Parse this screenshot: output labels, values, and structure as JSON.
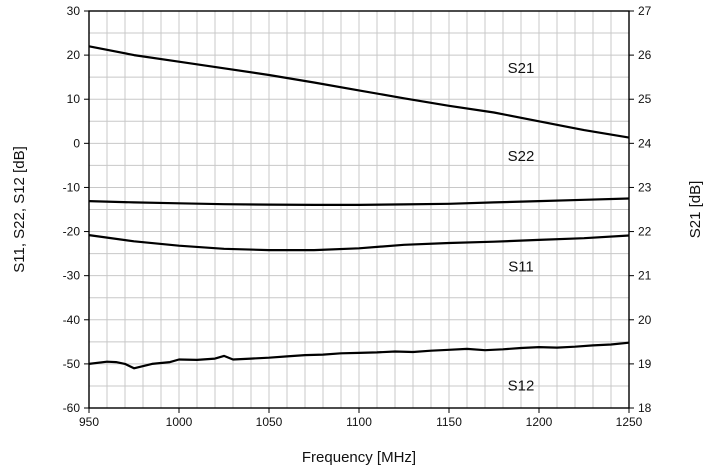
{
  "chart_data": {
    "type": "line",
    "xlabel": "Frequency [MHz]",
    "ylabel": "S11, S22, S12 [dB]",
    "y2label": "S21 [dB]",
    "xlim": [
      950,
      1250
    ],
    "ylim": [
      -60,
      30
    ],
    "y2lim": [
      18,
      27
    ],
    "xticks": [
      950,
      1000,
      1050,
      1100,
      1150,
      1200,
      1250
    ],
    "yticks": [
      -60,
      -50,
      -40,
      -30,
      -20,
      -10,
      0,
      10,
      20,
      30
    ],
    "y2ticks": [
      18,
      19,
      20,
      21,
      22,
      23,
      24,
      25,
      26,
      27
    ],
    "grid": true,
    "series": [
      {
        "name": "S21",
        "axis": "right",
        "label_at": [
          1190,
          25.6
        ],
        "x": [
          950,
          975,
          1000,
          1025,
          1050,
          1075,
          1100,
          1125,
          1150,
          1175,
          1200,
          1225,
          1250
        ],
        "values": [
          26.2,
          26.0,
          25.85,
          25.7,
          25.55,
          25.38,
          25.2,
          25.02,
          24.85,
          24.7,
          24.5,
          24.3,
          24.13
        ]
      },
      {
        "name": "S22",
        "axis": "left",
        "label_at": [
          1190,
          -4
        ],
        "x": [
          950,
          975,
          1000,
          1025,
          1050,
          1075,
          1100,
          1125,
          1150,
          1175,
          1200,
          1225,
          1250
        ],
        "values": [
          -13.1,
          -13.4,
          -13.6,
          -13.8,
          -13.9,
          -13.95,
          -13.95,
          -13.85,
          -13.7,
          -13.4,
          -13.1,
          -12.8,
          -12.5
        ]
      },
      {
        "name": "S11",
        "axis": "left",
        "label_at": [
          1190,
          -29
        ],
        "x": [
          950,
          975,
          1000,
          1025,
          1050,
          1075,
          1100,
          1125,
          1150,
          1175,
          1200,
          1225,
          1250
        ],
        "values": [
          -20.8,
          -22.2,
          -23.2,
          -23.9,
          -24.2,
          -24.2,
          -23.8,
          -23.0,
          -22.6,
          -22.3,
          -21.9,
          -21.5,
          -20.9
        ]
      },
      {
        "name": "S12",
        "axis": "left",
        "label_at": [
          1190,
          -56
        ],
        "x": [
          950,
          960,
          965,
          970,
          975,
          985,
          995,
          1000,
          1010,
          1020,
          1025,
          1030,
          1040,
          1050,
          1060,
          1070,
          1080,
          1090,
          1100,
          1110,
          1120,
          1130,
          1140,
          1150,
          1160,
          1170,
          1180,
          1190,
          1200,
          1210,
          1220,
          1230,
          1240,
          1250
        ],
        "values": [
          -50.0,
          -49.5,
          -49.6,
          -50.0,
          -51.0,
          -50.0,
          -49.6,
          -49.0,
          -49.1,
          -48.8,
          -48.2,
          -49.0,
          -48.8,
          -48.6,
          -48.3,
          -48.0,
          -47.9,
          -47.6,
          -47.5,
          -47.4,
          -47.2,
          -47.3,
          -47.0,
          -46.8,
          -46.6,
          -46.9,
          -46.7,
          -46.4,
          -46.2,
          -46.3,
          -46.1,
          -45.8,
          -45.6,
          -45.2
        ]
      }
    ]
  }
}
